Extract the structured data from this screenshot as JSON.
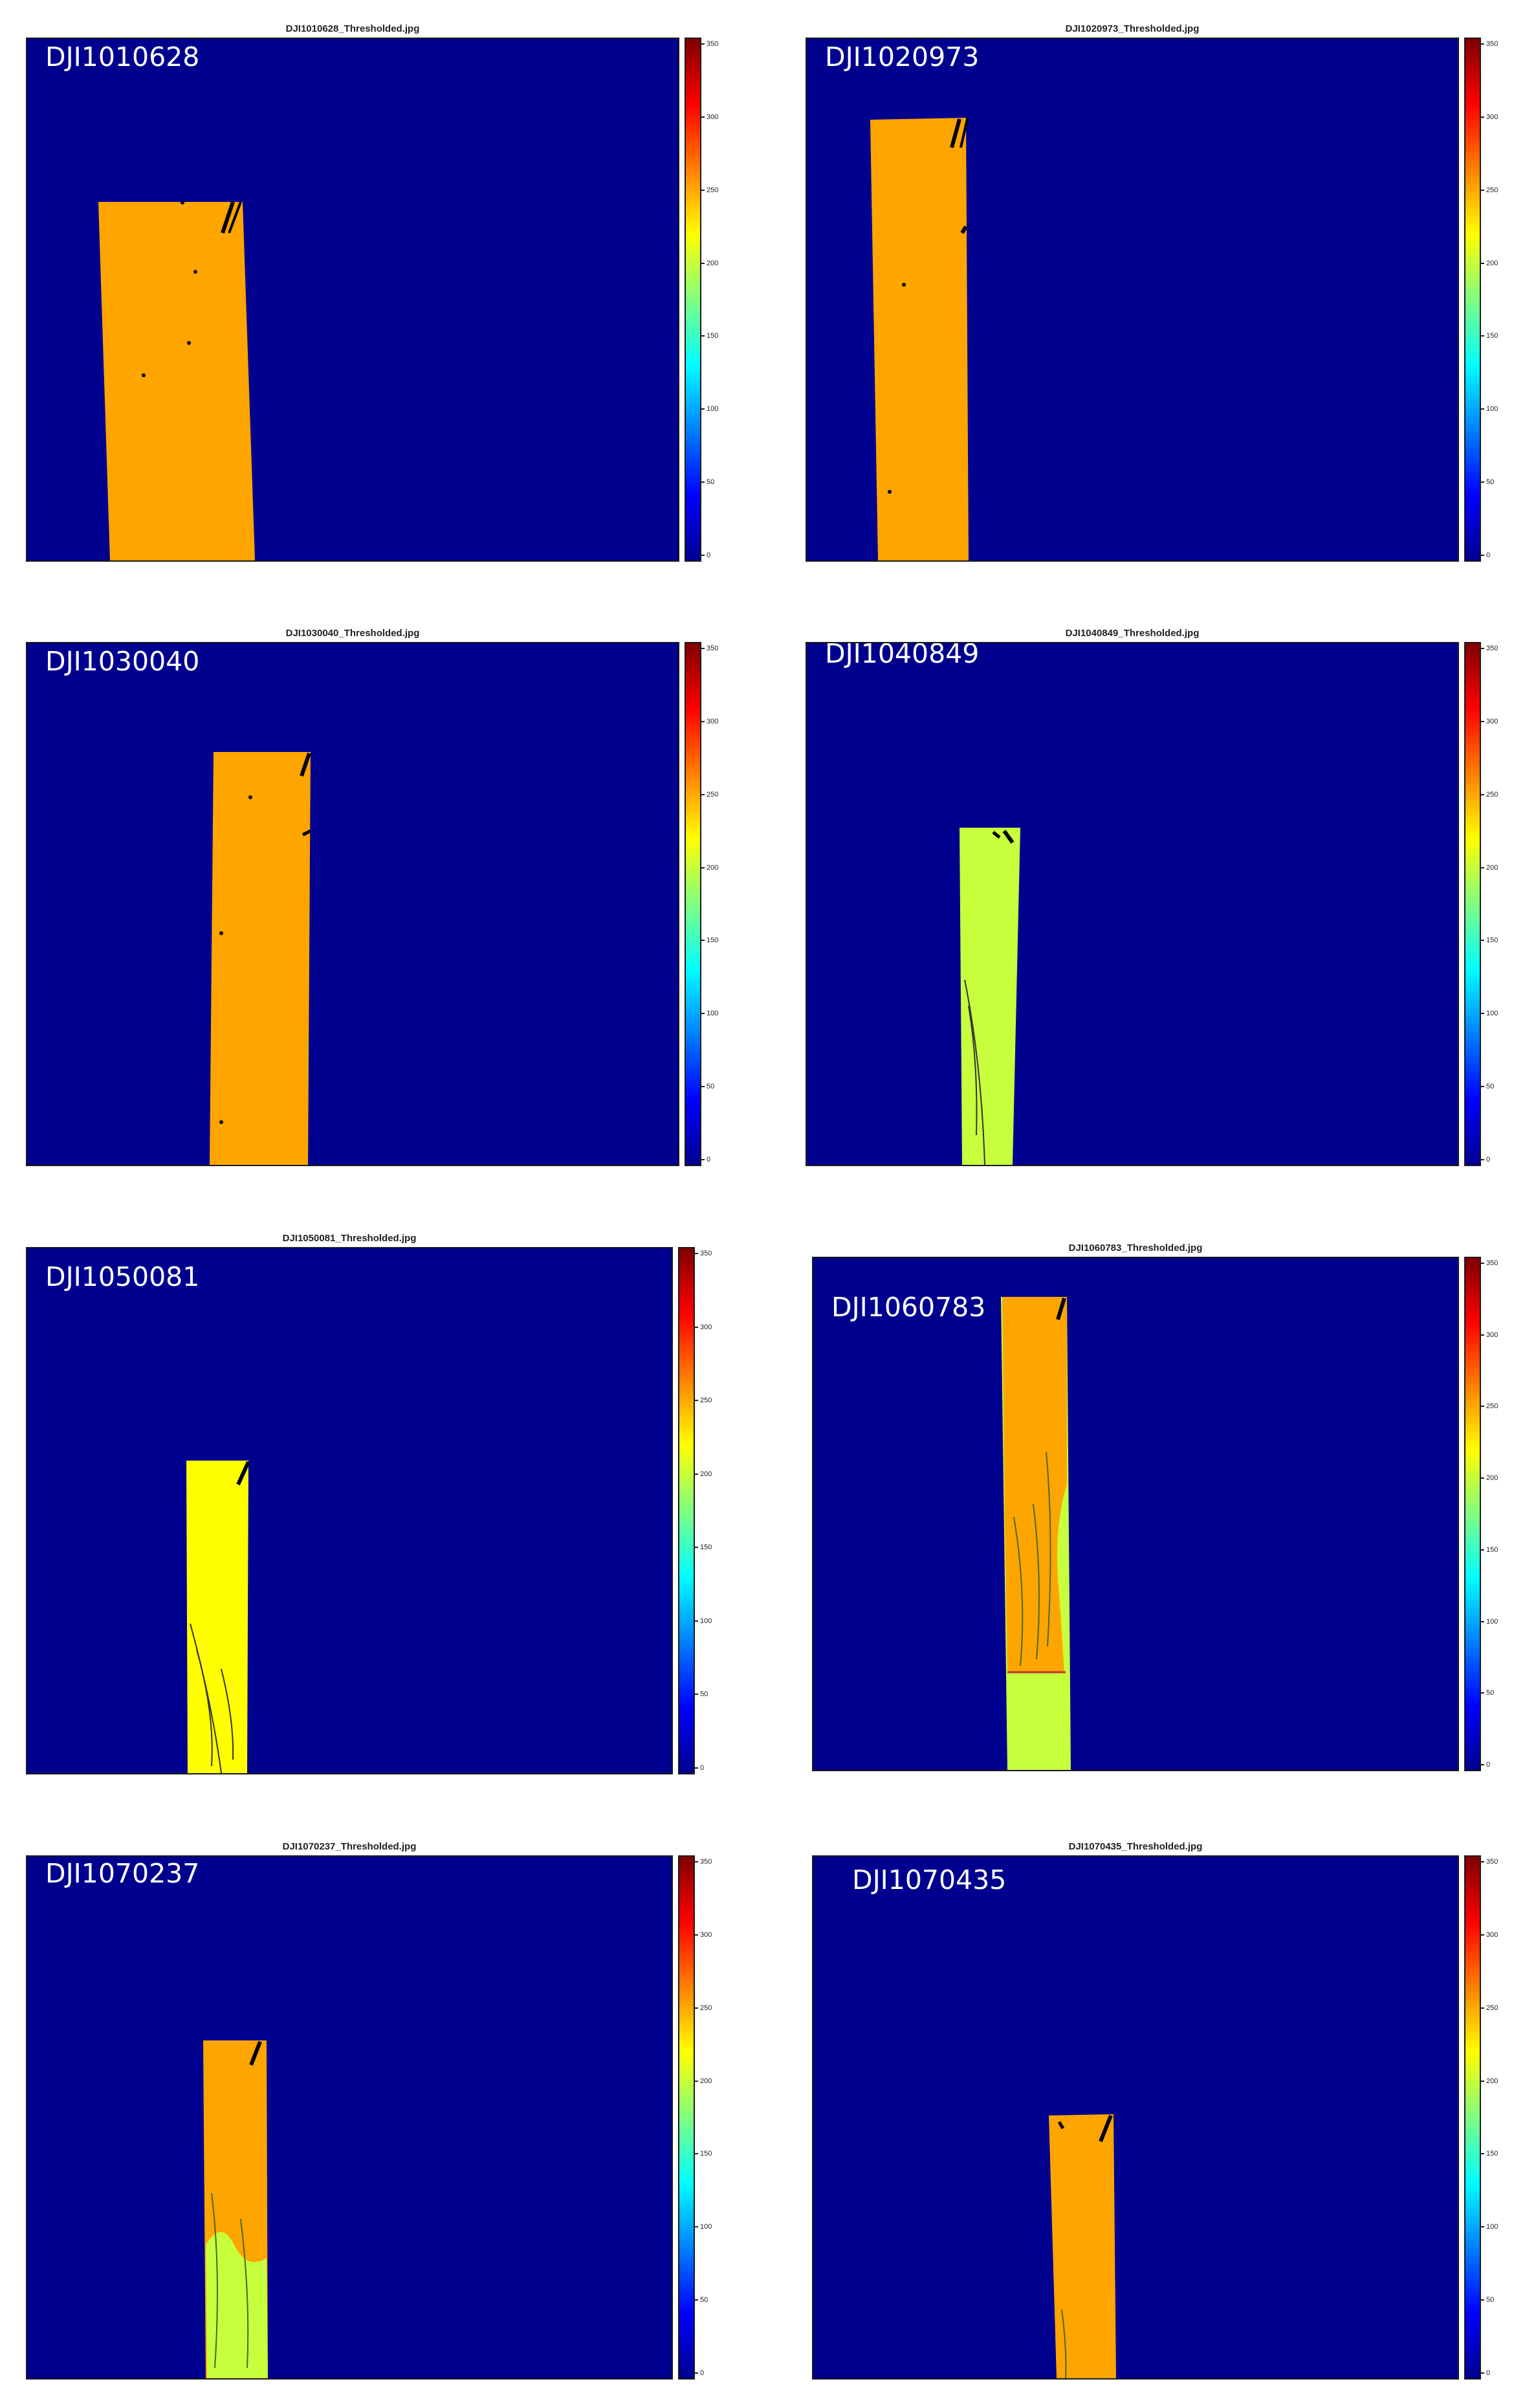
{
  "panels": [
    {
      "title": "DJI1010628_Thresholded.jpg",
      "label": "DJI1010628"
    },
    {
      "title": "DJI1020973_Thresholded.jpg",
      "label": "DJI1020973"
    },
    {
      "title": "DJI1030040_Thresholded.jpg",
      "label": "DJI1030040"
    },
    {
      "title": "DJI1040849_Thresholded.jpg",
      "label": "DJI1040849"
    },
    {
      "title": "DJI1050081_Thresholded.jpg",
      "label": "DJI1050081"
    },
    {
      "title": "DJI1060783_Thresholded.jpg",
      "label": "DJI1060783"
    },
    {
      "title": "DJI1070237_Thresholded.jpg",
      "label": "DJI1070237"
    },
    {
      "title": "DJI1070435_Thresholded.jpg",
      "label": "DJI1070435"
    }
  ],
  "colorbar": {
    "ticks": [
      "350",
      "300",
      "250",
      "200",
      "150",
      "100",
      "50",
      "0"
    ],
    "min": 0,
    "max": 350,
    "colormap": "jet"
  },
  "colors": {
    "background": "#00008f",
    "orange": "#ffa500",
    "yellow_green": "#c8ff3c",
    "yellow": "#ffff00"
  }
}
